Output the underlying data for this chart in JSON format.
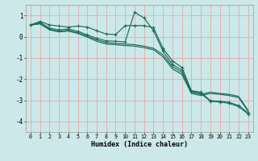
{
  "xlabel": "Humidex (Indice chaleur)",
  "bg_color": "#cce8e8",
  "grid_color": "#e8a8a8",
  "line_color": "#1a6b5a",
  "x": [
    0,
    1,
    2,
    3,
    4,
    5,
    6,
    7,
    8,
    9,
    10,
    11,
    12,
    13,
    14,
    15,
    16,
    17,
    18,
    19,
    20,
    21,
    22,
    23
  ],
  "line1": [
    0.55,
    0.72,
    0.55,
    0.5,
    0.45,
    0.5,
    0.45,
    0.28,
    0.12,
    0.1,
    0.52,
    0.52,
    0.52,
    0.42,
    -0.55,
    -1.15,
    -1.45,
    -2.55,
    -2.62,
    -3.02,
    -3.05,
    -3.1,
    -3.25,
    -3.6
  ],
  "line2": [
    0.55,
    0.68,
    0.4,
    0.32,
    0.36,
    0.25,
    0.08,
    -0.08,
    -0.2,
    -0.22,
    -0.25,
    1.15,
    0.88,
    0.28,
    -0.68,
    -1.32,
    -1.58,
    -2.58,
    -2.68,
    -3.05,
    -3.08,
    -3.15,
    -3.3,
    -3.65
  ],
  "line3": [
    0.55,
    0.62,
    0.35,
    0.25,
    0.3,
    0.18,
    0.02,
    -0.15,
    -0.28,
    -0.32,
    -0.35,
    -0.38,
    -0.45,
    -0.55,
    -0.85,
    -1.42,
    -1.68,
    -2.62,
    -2.72,
    -2.62,
    -2.68,
    -2.72,
    -2.82,
    -3.48
  ],
  "line4": [
    0.55,
    0.6,
    0.32,
    0.22,
    0.26,
    0.15,
    -0.02,
    -0.22,
    -0.35,
    -0.38,
    -0.42,
    -0.45,
    -0.52,
    -0.62,
    -0.95,
    -1.52,
    -1.78,
    -2.68,
    -2.78,
    -2.68,
    -2.72,
    -2.78,
    -2.88,
    -3.52
  ],
  "ylim": [
    -4.5,
    1.5
  ],
  "xlim": [
    -0.5,
    23.5
  ],
  "yticks": [
    -4,
    -3,
    -2,
    -1,
    0,
    1
  ],
  "xticks": [
    0,
    1,
    2,
    3,
    4,
    5,
    6,
    7,
    8,
    9,
    10,
    11,
    12,
    13,
    14,
    15,
    16,
    17,
    18,
    19,
    20,
    21,
    22,
    23
  ]
}
